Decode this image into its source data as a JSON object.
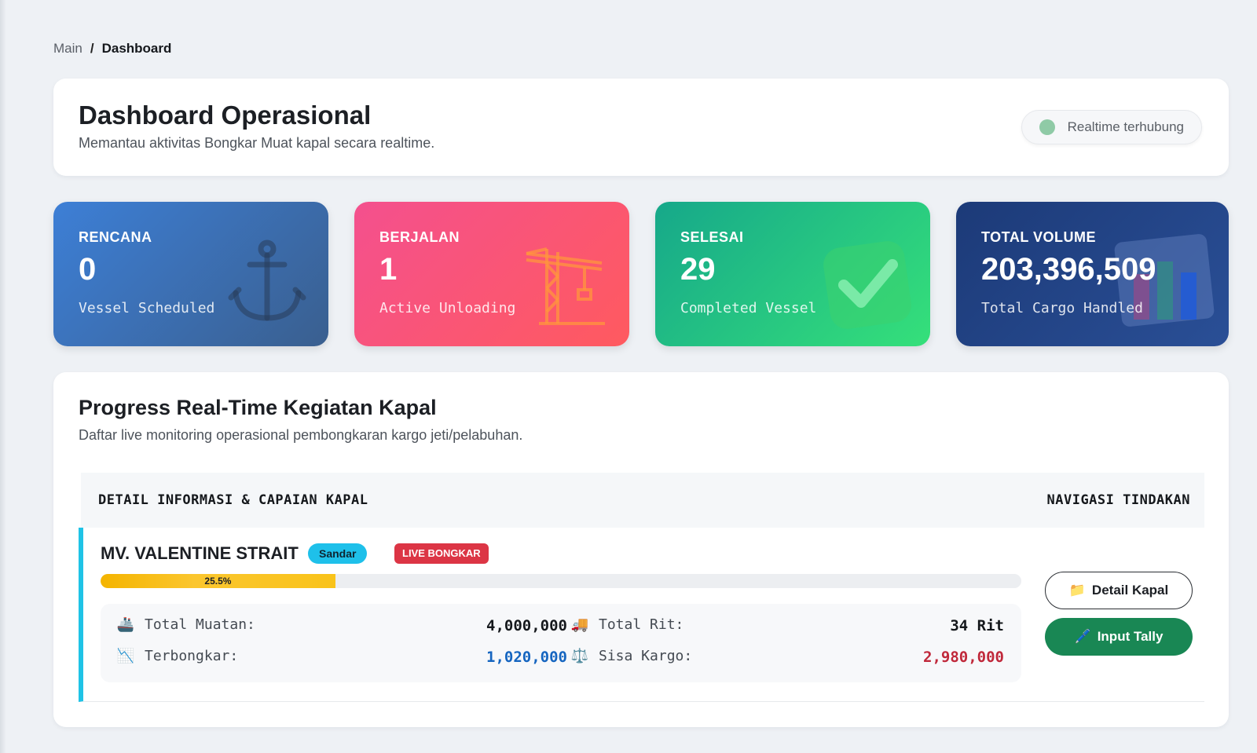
{
  "breadcrumb": {
    "parent": "Main",
    "separator": "/",
    "current": "Dashboard"
  },
  "header": {
    "title": "Dashboard Operasional",
    "subtitle": "Memantau aktivitas Bongkar Muat kapal secara realtime.",
    "realtime_status": "Realtime terhubung",
    "realtime_color": "#8fcaa6"
  },
  "stats": [
    {
      "label": "RENCANA",
      "value": "0",
      "desc": "Vessel Scheduled",
      "icon": "anchor-icon"
    },
    {
      "label": "BERJALAN",
      "value": "1",
      "desc": "Active Unloading",
      "icon": "crane-icon"
    },
    {
      "label": "SELESAI",
      "value": "29",
      "desc": "Completed Vessel",
      "icon": "check-icon"
    },
    {
      "label": "TOTAL VOLUME",
      "value": "203,396,509",
      "desc": "Total Cargo Handled",
      "icon": "bar-chart-icon"
    }
  ],
  "progress": {
    "title": "Progress Real-Time Kegiatan Kapal",
    "subtitle": "Daftar live monitoring operasional pembongkaran kargo jeti/pelabuhan.",
    "table_headers": {
      "left": "DETAIL INFORMASI & CAPAIAN KAPAL",
      "right": "NAVIGASI TINDAKAN"
    },
    "vessels": [
      {
        "name": "MV. VALENTINE STRAIT",
        "status_badge": "Sandar",
        "live_badge": "LIVE BONGKAR",
        "progress_percent": 25.5,
        "progress_label": "25.5%",
        "metrics": {
          "total_muatan_label": "Total Muatan:",
          "total_muatan_value": "4,000,000",
          "total_rit_label": "Total Rit:",
          "total_rit_value": "34 Rit",
          "terbongkar_label": "Terbongkar:",
          "terbongkar_value": "1,020,000",
          "sisa_kargo_label": "Sisa Kargo:",
          "sisa_kargo_value": "2,980,000"
        },
        "actions": {
          "detail_label": "Detail Kapal",
          "detail_icon": "folder-icon",
          "tally_label": "Input Tally",
          "tally_icon": "pen-icon"
        }
      }
    ]
  },
  "colors": {
    "terbongkar": "#1565c0",
    "sisa_kargo": "#c0283a",
    "accent_border": "#1fc3e6",
    "tally_button": "#198754"
  }
}
